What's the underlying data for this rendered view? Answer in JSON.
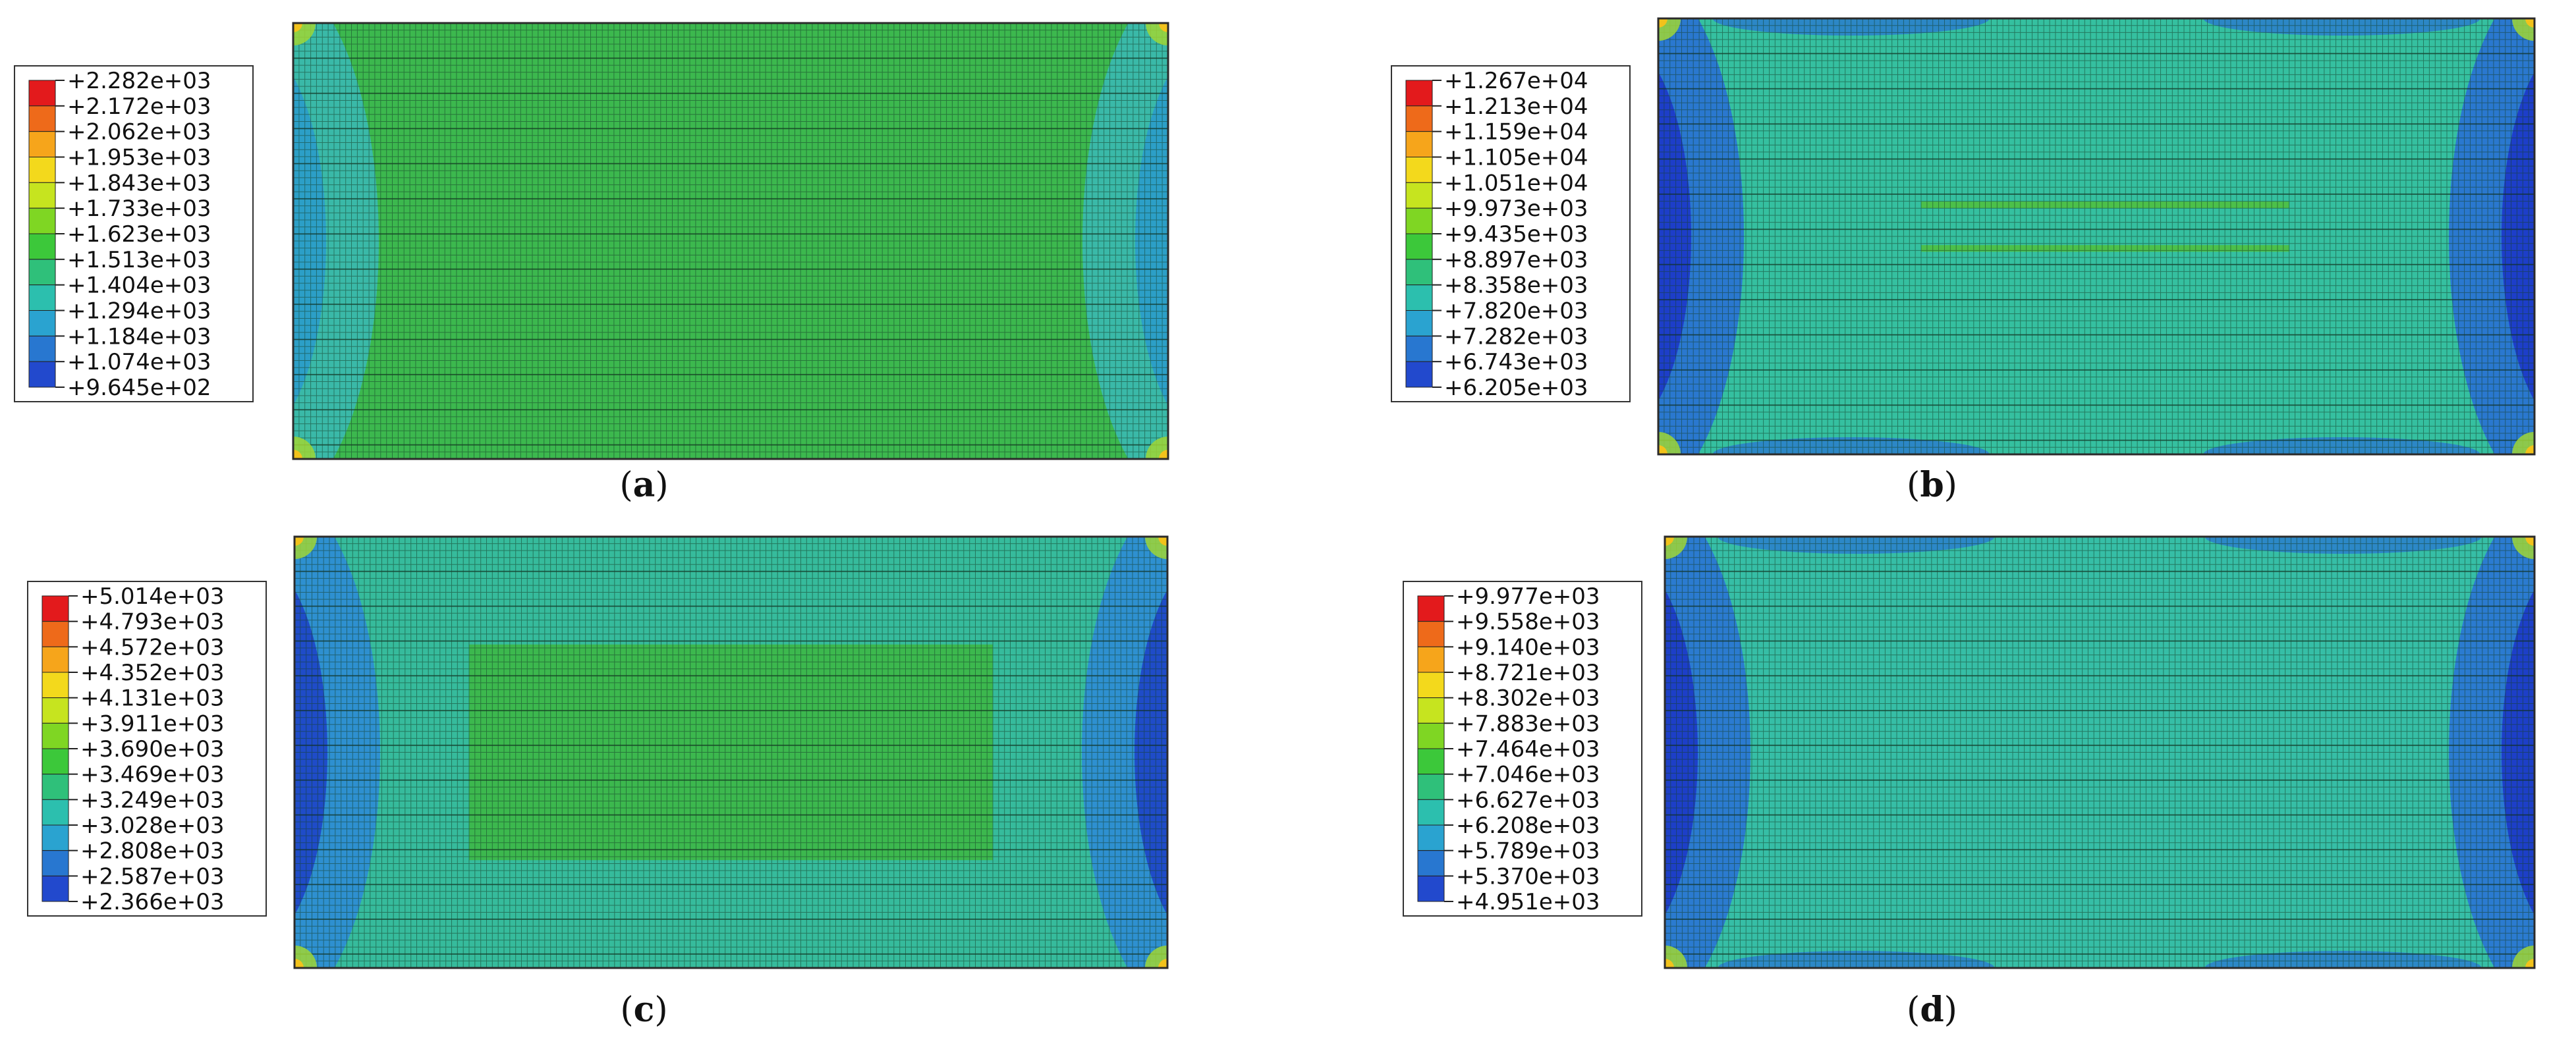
{
  "panels": [
    {
      "id": "a",
      "label_letter": "a",
      "legend_values": [
        "+2.282e+03",
        "+2.172e+03",
        "+2.062e+03",
        "+1.953e+03",
        "+1.843e+03",
        "+1.733e+03",
        "+1.623e+03",
        "+1.513e+03",
        "+1.404e+03",
        "+1.294e+03",
        "+1.184e+03",
        "+1.074e+03",
        "+9.645e+02"
      ],
      "field_color": "#3cb84e",
      "edge_colors": [
        "#2c9fc7",
        "#3ab9a8"
      ],
      "center_patch": false,
      "stripes": false
    },
    {
      "id": "b",
      "label_letter": "b",
      "legend_values": [
        "+1.267e+04",
        "+1.213e+04",
        "+1.159e+04",
        "+1.105e+04",
        "+1.051e+04",
        "+9.973e+03",
        "+9.435e+03",
        "+8.897e+03",
        "+8.358e+03",
        "+7.820e+03",
        "+7.282e+03",
        "+6.743e+03",
        "+6.205e+03"
      ],
      "field_color": "#35c0a0",
      "edge_colors": [
        "#1d3ec9",
        "#2a78cf"
      ],
      "center_patch": false,
      "stripes": true
    },
    {
      "id": "c",
      "label_letter": "c",
      "legend_values": [
        "+5.014e+03",
        "+4.793e+03",
        "+4.572e+03",
        "+4.352e+03",
        "+4.131e+03",
        "+3.911e+03",
        "+3.690e+03",
        "+3.469e+03",
        "+3.249e+03",
        "+3.028e+03",
        "+2.808e+03",
        "+2.587e+03",
        "+2.366e+03"
      ],
      "field_color": "#36bb9c",
      "edge_colors": [
        "#1f4cc8",
        "#2e90d0"
      ],
      "center_patch": true,
      "stripes": false
    },
    {
      "id": "d",
      "label_letter": "d",
      "legend_values": [
        "+9.977e+03",
        "+9.558e+03",
        "+9.140e+03",
        "+8.721e+03",
        "+8.302e+03",
        "+7.883e+03",
        "+7.464e+03",
        "+7.046e+03",
        "+6.627e+03",
        "+6.208e+03",
        "+5.789e+03",
        "+5.370e+03",
        "+4.951e+03"
      ],
      "field_color": "#36bea6",
      "edge_colors": [
        "#1d3fc8",
        "#2b7bd0"
      ],
      "center_patch": false,
      "stripes": false
    }
  ],
  "legend_colors": [
    "#e31a1c",
    "#ee6a1a",
    "#f6a51b",
    "#f3d91c",
    "#c6e41f",
    "#7fd623",
    "#3cc83a",
    "#2fc07a",
    "#2cbfae",
    "#2aa3d0",
    "#2877d0",
    "#2249cd",
    "#1b1bc7"
  ]
}
